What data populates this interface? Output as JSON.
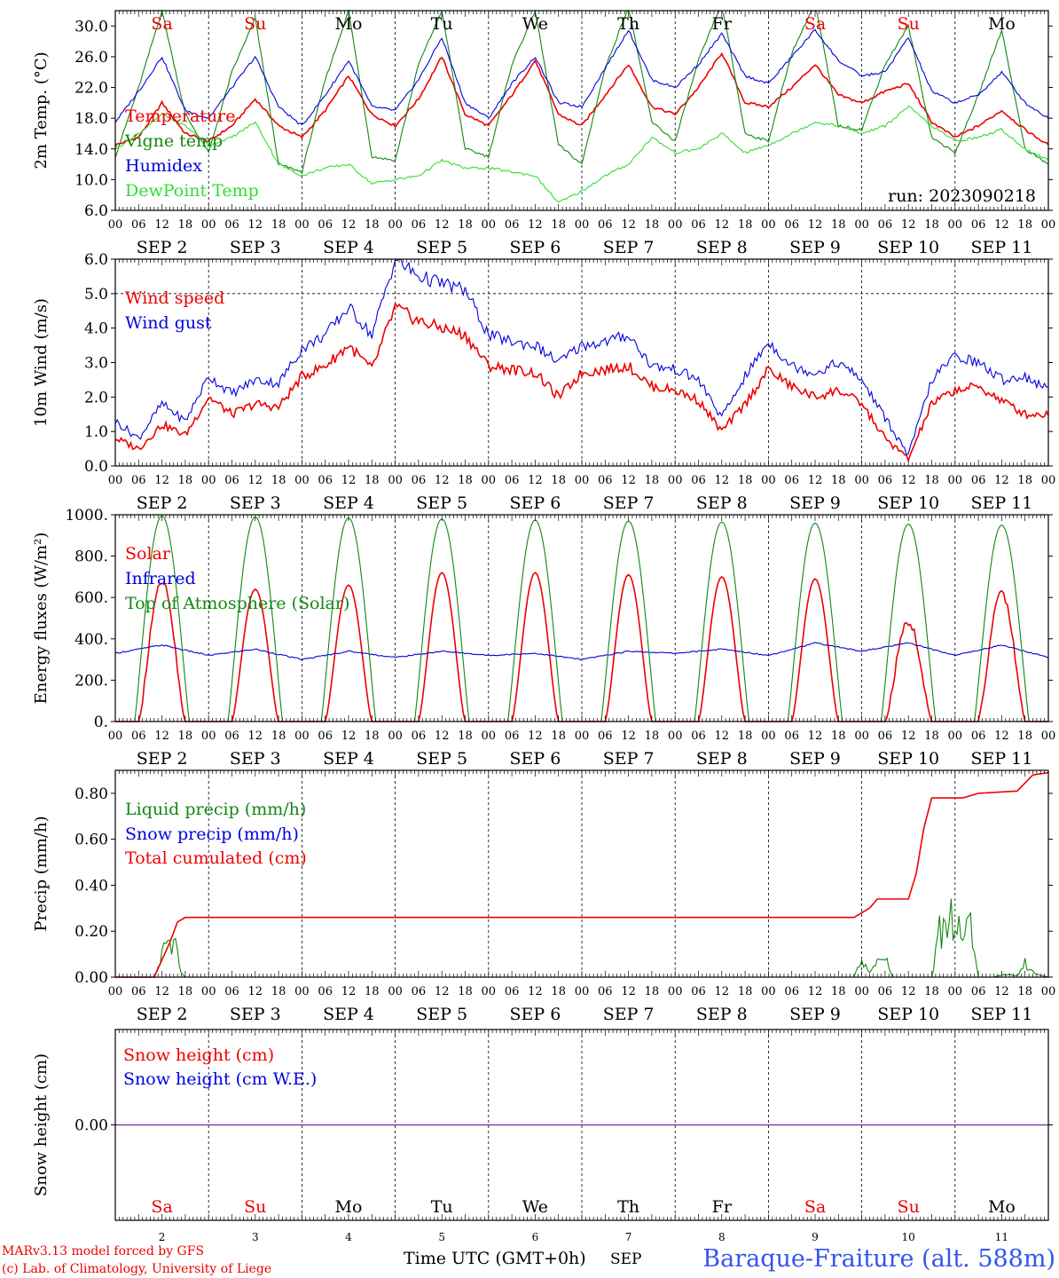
{
  "run_label": "run: 2023090218",
  "model_credit": "MARv3.13 model forced by GFS",
  "lab_credit": "(c) Lab. of Climatology, University of Liege",
  "x_axis_title": "Time UTC (GMT+0h)",
  "x_axis_month": "SEP",
  "station_title": "Baraque-Fraiture (alt. 588m)",
  "day_names": [
    "Sa",
    "Su",
    "Mo",
    "Tu",
    "We",
    "Th",
    "Fr",
    "Sa",
    "Su",
    "Mo"
  ],
  "day_numbers": [
    "2",
    "3",
    "4",
    "5",
    "6",
    "7",
    "8",
    "9",
    "10",
    "11"
  ],
  "date_labels": [
    "SEP  2",
    "SEP  3",
    "SEP  4",
    "SEP  5",
    "SEP  6",
    "SEP  7",
    "SEP  8",
    "SEP  9",
    "SEP 10",
    "SEP 11"
  ],
  "hour_labels": [
    "00",
    "06",
    "12",
    "18"
  ],
  "colors": {
    "red": "#ee0000",
    "blue": "#0000dd",
    "green": "#118811",
    "light_green": "#33dd33",
    "purple": "#8844aa",
    "weekend": "#ee0000",
    "weekday": "#000000"
  },
  "chart_data": [
    {
      "type": "line",
      "ylabel": "2m Temp. (°C)",
      "ylim": [
        6,
        32
      ],
      "yticks": [
        "6.0",
        "10.0",
        "14.0",
        "18.0",
        "22.0",
        "26.0",
        "30.0"
      ],
      "x_unit": "hours since 2023-09-02 00 UTC",
      "series": [
        {
          "name": "Temperature",
          "color": "red",
          "x": [
            0,
            6,
            12,
            18,
            24,
            30,
            36,
            42,
            48,
            54,
            60,
            66,
            72,
            78,
            84,
            90,
            96,
            102,
            108,
            114,
            120,
            126,
            132,
            138,
            144,
            150,
            156,
            162,
            168,
            174,
            180,
            186,
            192,
            198,
            204,
            210,
            216,
            222,
            228,
            234,
            240
          ],
          "values": [
            14.5,
            15.5,
            20.0,
            16.0,
            15.0,
            17.0,
            20.5,
            17.0,
            15.5,
            19.0,
            23.5,
            18.5,
            17.0,
            20.5,
            26.0,
            18.5,
            17.0,
            21.0,
            25.5,
            18.5,
            17.0,
            21.0,
            25.0,
            19.5,
            18.5,
            22.0,
            26.5,
            20.0,
            19.5,
            22.0,
            25.0,
            21.0,
            20.0,
            21.5,
            22.5,
            17.5,
            15.5,
            17.0,
            19.0,
            16.5,
            14.5
          ]
        },
        {
          "name": "Vigne temp",
          "color": "green",
          "x": [
            0,
            6,
            12,
            18,
            24,
            30,
            36,
            42,
            48,
            54,
            60,
            66,
            72,
            78,
            84,
            90,
            96,
            102,
            108,
            114,
            120,
            126,
            132,
            138,
            144,
            150,
            156,
            162,
            168,
            174,
            180,
            186,
            192,
            198,
            204,
            210,
            216,
            222,
            228,
            234,
            240
          ],
          "values": [
            13.0,
            22.0,
            32.0,
            18.5,
            13.5,
            24.0,
            31.0,
            12.0,
            11.0,
            23.0,
            32.0,
            13.0,
            12.5,
            25.0,
            32.0,
            14.0,
            13.0,
            25.0,
            32.0,
            14.5,
            12.0,
            24.5,
            32.5,
            17.5,
            15.0,
            25.5,
            33.0,
            16.0,
            15.0,
            26.5,
            33.0,
            17.0,
            16.5,
            25.0,
            30.0,
            15.5,
            13.5,
            21.0,
            29.5,
            14.0,
            12.0
          ]
        },
        {
          "name": "Humidex",
          "color": "blue",
          "x": [
            0,
            6,
            12,
            18,
            24,
            30,
            36,
            42,
            48,
            54,
            60,
            66,
            72,
            78,
            84,
            90,
            96,
            102,
            108,
            114,
            120,
            126,
            132,
            138,
            144,
            150,
            156,
            162,
            168,
            174,
            180,
            186,
            192,
            198,
            204,
            210,
            216,
            222,
            228,
            234,
            240
          ],
          "values": [
            17.5,
            21.5,
            26.0,
            19.0,
            18.0,
            22.0,
            26.0,
            19.5,
            17.0,
            21.0,
            25.5,
            19.5,
            19.0,
            23.0,
            28.5,
            20.0,
            18.0,
            22.5,
            26.0,
            20.0,
            19.5,
            24.5,
            29.5,
            23.0,
            22.0,
            25.0,
            29.0,
            23.5,
            22.5,
            26.0,
            29.5,
            25.5,
            23.5,
            24.0,
            28.5,
            21.5,
            20.0,
            21.0,
            24.0,
            20.0,
            18.0
          ]
        },
        {
          "name": "DewPoint Temp",
          "color": "light_green",
          "x": [
            0,
            6,
            12,
            18,
            24,
            30,
            36,
            42,
            48,
            54,
            60,
            66,
            72,
            78,
            84,
            90,
            96,
            102,
            108,
            114,
            120,
            126,
            132,
            138,
            144,
            150,
            156,
            162,
            168,
            174,
            180,
            186,
            192,
            198,
            204,
            210,
            216,
            222,
            228,
            234,
            240
          ],
          "values": [
            14.0,
            16.0,
            18.5,
            17.0,
            14.5,
            15.5,
            17.5,
            12.0,
            10.5,
            11.5,
            12.0,
            9.5,
            10.0,
            10.5,
            12.5,
            11.5,
            11.5,
            11.0,
            10.5,
            7.0,
            8.5,
            10.5,
            12.0,
            15.5,
            13.5,
            14.0,
            16.0,
            13.5,
            14.5,
            16.0,
            17.5,
            17.0,
            16.0,
            17.0,
            19.5,
            17.0,
            15.0,
            15.5,
            16.5,
            14.0,
            12.5
          ]
        }
      ]
    },
    {
      "type": "line",
      "ylabel": "10m Wind (m/s)",
      "ylim": [
        0,
        6
      ],
      "yticks": [
        "0.0",
        "1.0",
        "2.0",
        "3.0",
        "4.0",
        "5.0",
        "6.0"
      ],
      "x_unit": "hours since 2023-09-02 00 UTC",
      "series": [
        {
          "name": "Wind speed",
          "color": "red",
          "x": [
            0,
            6,
            12,
            18,
            24,
            30,
            36,
            42,
            48,
            54,
            60,
            66,
            72,
            78,
            84,
            90,
            96,
            102,
            108,
            114,
            120,
            126,
            132,
            138,
            144,
            150,
            156,
            162,
            168,
            174,
            180,
            186,
            192,
            198,
            204,
            210,
            216,
            222,
            228,
            234,
            240
          ],
          "values": [
            0.8,
            0.5,
            1.2,
            0.9,
            2.0,
            1.5,
            1.8,
            1.7,
            2.6,
            2.9,
            3.5,
            2.8,
            4.6,
            4.2,
            4.0,
            3.8,
            2.9,
            2.8,
            2.7,
            2.0,
            2.7,
            2.8,
            2.9,
            2.3,
            2.2,
            1.9,
            1.0,
            1.8,
            2.8,
            2.3,
            2.0,
            2.2,
            1.8,
            0.8,
            0.2,
            1.8,
            2.2,
            2.3,
            1.9,
            1.5,
            1.5
          ]
        },
        {
          "name": "Wind gust",
          "color": "blue",
          "x": [
            0,
            6,
            12,
            18,
            24,
            30,
            36,
            42,
            48,
            54,
            60,
            66,
            72,
            78,
            84,
            90,
            96,
            102,
            108,
            114,
            120,
            126,
            132,
            138,
            144,
            150,
            156,
            162,
            168,
            174,
            180,
            186,
            192,
            198,
            204,
            210,
            216,
            222,
            228,
            234,
            240
          ],
          "values": [
            1.3,
            0.8,
            1.8,
            1.3,
            2.6,
            2.1,
            2.5,
            2.4,
            3.4,
            3.8,
            4.6,
            3.8,
            6.0,
            5.5,
            5.3,
            5.1,
            3.8,
            3.6,
            3.5,
            3.0,
            3.5,
            3.6,
            3.8,
            2.9,
            2.8,
            2.5,
            1.4,
            2.6,
            3.6,
            2.9,
            2.7,
            3.0,
            2.5,
            1.4,
            0.3,
            2.5,
            3.2,
            3.0,
            2.5,
            2.6,
            2.2
          ]
        }
      ]
    },
    {
      "type": "line",
      "ylabel": "Energy fluxes (W/m²)",
      "ylim": [
        0,
        1000
      ],
      "yticks": [
        "0.",
        "200.",
        "400.",
        "600.",
        "800.",
        "1000."
      ],
      "x_unit": "hours since 2023-09-02 00 UTC",
      "series": [
        {
          "name": "Solar",
          "color": "red",
          "daily_peak": [
            680,
            640,
            660,
            720,
            720,
            710,
            700,
            690,
            480,
            620
          ],
          "sunrise_h": 6,
          "sunset_h": 18,
          "peak_h": 12
        },
        {
          "name": "Infrared",
          "color": "blue",
          "x": [
            0,
            12,
            24,
            36,
            48,
            60,
            72,
            84,
            96,
            108,
            120,
            132,
            144,
            156,
            168,
            180,
            192,
            204,
            216,
            228,
            240
          ],
          "values": [
            330,
            370,
            320,
            350,
            300,
            340,
            310,
            340,
            320,
            330,
            300,
            340,
            330,
            350,
            320,
            380,
            340,
            380,
            320,
            370,
            310
          ]
        },
        {
          "name": "Top of Atmosphere (Solar)",
          "color": "green",
          "daily_peak": [
            995,
            990,
            985,
            980,
            975,
            970,
            965,
            960,
            955,
            950
          ],
          "sunrise_h": 5,
          "sunset_h": 19,
          "peak_h": 12
        }
      ]
    },
    {
      "type": "line",
      "ylabel": "Precip (mm/h)",
      "ylim": [
        0,
        0.9
      ],
      "yticks": [
        "0.00",
        "0.20",
        "0.40",
        "0.60",
        "0.80"
      ],
      "x_unit": "hours since 2023-09-02 00 UTC",
      "series": [
        {
          "name": "Liquid precip (mm/h)",
          "color": "green",
          "x": [
            0,
            10,
            12,
            14,
            16,
            17,
            18,
            190,
            192,
            194,
            196,
            198,
            200,
            202,
            210,
            212,
            214,
            216,
            218,
            220,
            222,
            226,
            228,
            232,
            234,
            236,
            240
          ],
          "values": [
            0,
            0,
            0.1,
            0.13,
            0.12,
            0.02,
            0,
            0,
            0.08,
            0.02,
            0.06,
            0.08,
            0,
            0,
            0,
            0.2,
            0.22,
            0.28,
            0.18,
            0.2,
            0,
            0,
            0.01,
            0.01,
            0.06,
            0.02,
            0
          ]
        },
        {
          "name": "Snow precip (mm/h)",
          "color": "blue",
          "x": [
            0,
            240
          ],
          "values": [
            0,
            0
          ]
        },
        {
          "name": "Total cumulated (cm)",
          "color": "red",
          "x": [
            0,
            10,
            14,
            16,
            18,
            190,
            194,
            196,
            204,
            206,
            208,
            210,
            218,
            220,
            222,
            232,
            236,
            240
          ],
          "values": [
            0,
            0,
            0.15,
            0.24,
            0.26,
            0.26,
            0.3,
            0.34,
            0.34,
            0.45,
            0.65,
            0.78,
            0.78,
            0.79,
            0.8,
            0.81,
            0.88,
            0.89
          ]
        }
      ]
    },
    {
      "type": "line",
      "ylabel": "Snow height (cm)",
      "yticks": [
        "0.00"
      ],
      "x_unit": "hours since 2023-09-02 00 UTC",
      "series": [
        {
          "name": "Snow height (cm)",
          "color": "red",
          "x": [
            0,
            240
          ],
          "values": [
            0,
            0
          ]
        },
        {
          "name": "Snow height (cm W.E.)",
          "color": "blue",
          "x": [
            0,
            240
          ],
          "values": [
            0,
            0
          ]
        }
      ]
    }
  ]
}
